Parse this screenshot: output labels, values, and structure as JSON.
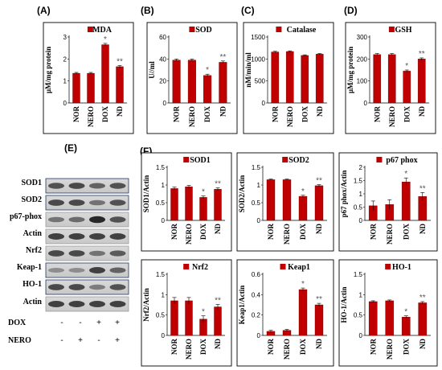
{
  "panel_letters": {
    "A": "(A)",
    "B": "(B)",
    "C": "(C)",
    "D": "(D)",
    "E": "(E)",
    "F": "(F)"
  },
  "colors": {
    "bar": "#c00000",
    "bar_edge": "#6b0000",
    "box": "#000000",
    "blot_frame": "#1f3864"
  },
  "blot": {
    "labels": [
      "SOD1",
      "SOD2",
      "p67-phox",
      "Actin",
      "Nrf2",
      "Keap-1",
      "HO-1",
      "Actin"
    ],
    "conditions": [
      {
        "label": "DOX",
        "signs": [
          "-",
          "-",
          "+",
          "+"
        ]
      },
      {
        "label": "NERO",
        "signs": [
          "-",
          "+",
          "-",
          "+"
        ]
      }
    ]
  },
  "chart_data": [
    {
      "id": "A",
      "type": "bar",
      "title": "MDA",
      "ylabel": "µM/mg protein",
      "categories": [
        "NOR",
        "NERO",
        "DOX",
        "ND"
      ],
      "values": [
        1.35,
        1.35,
        2.65,
        1.65
      ],
      "errors": [
        0.04,
        0.04,
        0.06,
        0.06
      ],
      "annotations": [
        "",
        "",
        "*",
        "**"
      ],
      "ylim": [
        0,
        3
      ],
      "yticks": [
        "0",
        "1",
        "2",
        "3"
      ]
    },
    {
      "id": "B",
      "type": "bar",
      "title": "SOD",
      "ylabel": "U//ml",
      "categories": [
        "NOR",
        "NERO",
        "DOX",
        "ND"
      ],
      "values": [
        39,
        39,
        25,
        37
      ],
      "errors": [
        1,
        1,
        1.2,
        1.2
      ],
      "annotations": [
        "",
        "",
        "*",
        "**"
      ],
      "ylim": [
        0,
        60
      ],
      "yticks": [
        "0",
        "20",
        "40",
        "60"
      ]
    },
    {
      "id": "C",
      "type": "bar",
      "title": "Catalase",
      "ylabel": "nM/min/ml",
      "categories": [
        "NOR",
        "NERO",
        "DOX",
        "ND"
      ],
      "values": [
        1160,
        1170,
        1080,
        1110
      ],
      "errors": [
        15,
        15,
        15,
        15
      ],
      "annotations": [
        "",
        "",
        "",
        ""
      ],
      "ylim": [
        0,
        1500
      ],
      "yticks": [
        "0",
        "500",
        "1000",
        "1500"
      ]
    },
    {
      "id": "D",
      "type": "bar",
      "title": "GSH",
      "ylabel": "µM/mg protein",
      "categories": [
        "NOR",
        "NERO",
        "DOX",
        "ND"
      ],
      "values": [
        220,
        220,
        145,
        200
      ],
      "errors": [
        5,
        5,
        5,
        5
      ],
      "annotations": [
        "",
        "",
        "*",
        "**"
      ],
      "ylim": [
        0,
        300
      ],
      "yticks": [
        "0",
        "100",
        "200",
        "300"
      ]
    },
    {
      "id": "F1",
      "type": "bar",
      "title": "SOD1",
      "ylabel": "SOD1/Actin",
      "categories": [
        "NOR",
        "NERO",
        "DOX",
        "ND"
      ],
      "values": [
        0.9,
        0.95,
        0.65,
        0.88
      ],
      "errors": [
        0.04,
        0.04,
        0.04,
        0.04
      ],
      "annotations": [
        "",
        "",
        "*",
        "**"
      ],
      "ylim": [
        0,
        1.5
      ],
      "yticks": [
        "0",
        "0.5",
        "1",
        "1.5"
      ]
    },
    {
      "id": "F2",
      "type": "bar",
      "title": "SOD2",
      "ylabel": "SOD2/Actin",
      "categories": [
        "NOR",
        "NERO",
        "DOX",
        "ND"
      ],
      "values": [
        1.15,
        1.15,
        0.68,
        0.98
      ],
      "errors": [
        0.02,
        0.02,
        0.03,
        0.03
      ],
      "annotations": [
        "",
        "",
        "*",
        "**"
      ],
      "ylim": [
        0,
        1.5
      ],
      "yticks": [
        "0",
        "0.5",
        "1",
        "1.5"
      ]
    },
    {
      "id": "F3",
      "type": "bar",
      "title": "p67 phox",
      "ylabel": "p67 phox/Actin",
      "categories": [
        "NOR",
        "NERO",
        "DOX",
        "ND"
      ],
      "values": [
        0.55,
        0.6,
        1.45,
        0.9
      ],
      "errors": [
        0.18,
        0.18,
        0.15,
        0.15
      ],
      "annotations": [
        "",
        "",
        "*",
        "**"
      ],
      "ylim": [
        0,
        2
      ],
      "yticks": [
        "0",
        "0.5",
        "1",
        "1.5",
        "2"
      ]
    },
    {
      "id": "F4",
      "type": "bar",
      "title": "Nrf2",
      "ylabel": "Nrf2/Actin",
      "categories": [
        "NOR",
        "NERO",
        "DOX",
        "ND"
      ],
      "values": [
        0.85,
        0.85,
        0.4,
        0.7
      ],
      "errors": [
        0.08,
        0.08,
        0.08,
        0.06
      ],
      "annotations": [
        "",
        "",
        "*",
        "**"
      ],
      "ylim": [
        0,
        1.5
      ],
      "yticks": [
        "0",
        "0.5",
        "1",
        "1.5"
      ]
    },
    {
      "id": "F5",
      "type": "bar",
      "title": "Keap1",
      "ylabel": "Keap1/Actin",
      "categories": [
        "NOR",
        "NERO",
        "DOX",
        "ND"
      ],
      "values": [
        0.04,
        0.05,
        0.45,
        0.3
      ],
      "errors": [
        0.01,
        0.01,
        0.015,
        0.015
      ],
      "annotations": [
        "",
        "",
        "*",
        "**"
      ],
      "ylim": [
        0,
        0.6
      ],
      "yticks": [
        "0",
        "0.2",
        "0.4",
        "0.6"
      ]
    },
    {
      "id": "F6",
      "type": "bar",
      "title": "HO-1",
      "ylabel": "HO-1/Actin",
      "categories": [
        "NOR",
        "NERO",
        "DOX",
        "ND"
      ],
      "values": [
        0.83,
        0.85,
        0.45,
        0.8
      ],
      "errors": [
        0.02,
        0.02,
        0.03,
        0.03
      ],
      "annotations": [
        "",
        "",
        "*",
        "**"
      ],
      "ylim": [
        0,
        1.5
      ],
      "yticks": [
        "0",
        "0.5",
        "1",
        "1.5"
      ]
    }
  ]
}
